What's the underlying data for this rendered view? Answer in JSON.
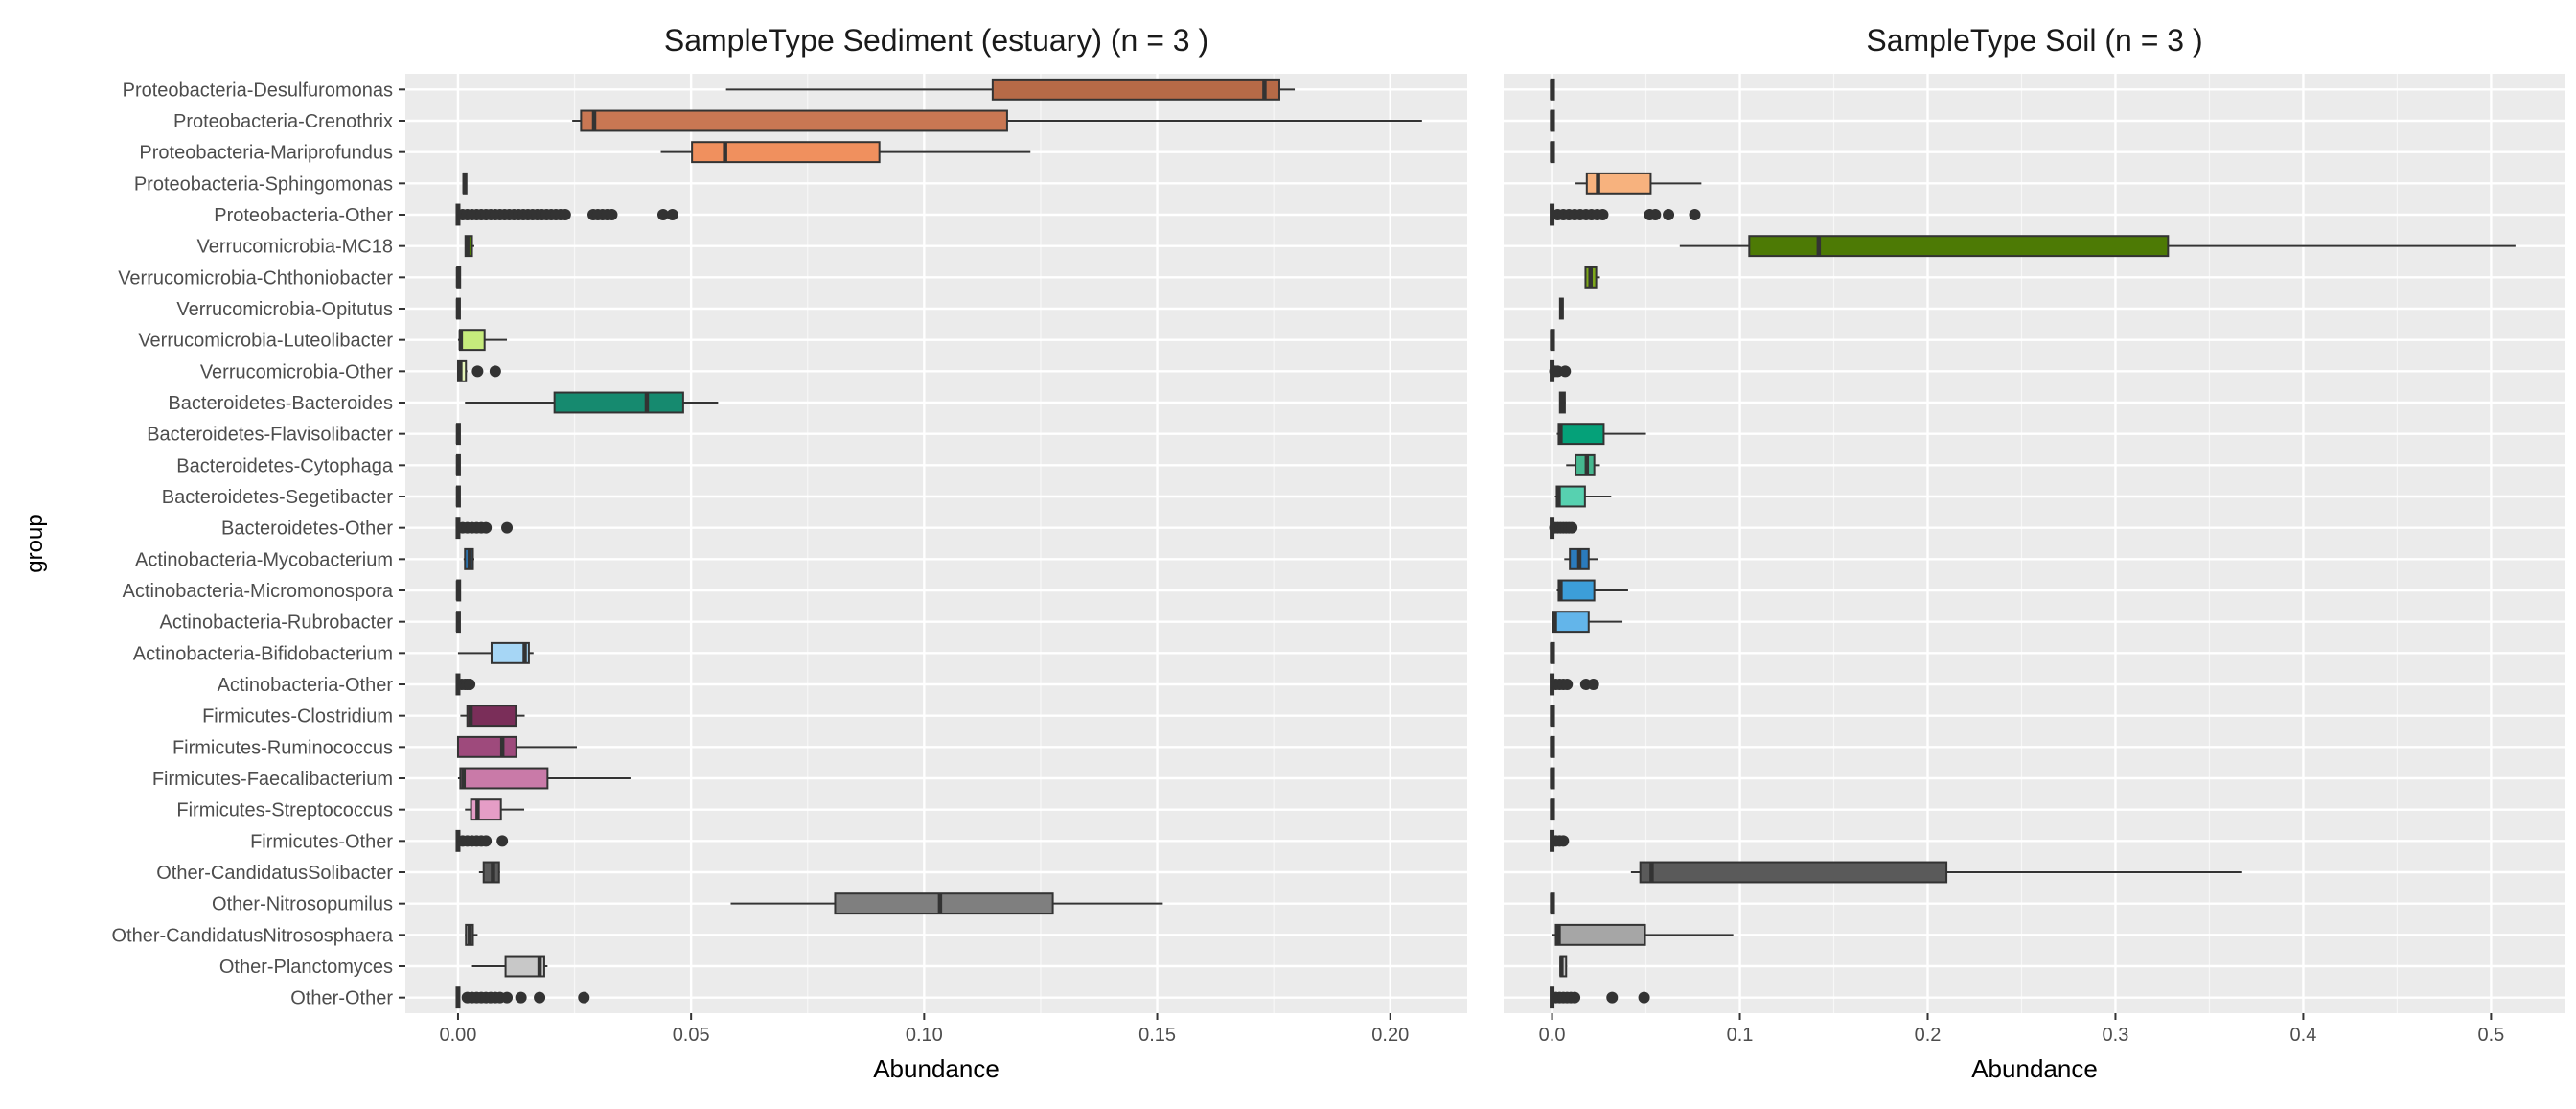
{
  "chart_data": {
    "type": "boxplot",
    "ylabel": "group",
    "groups": [
      "Proteobacteria-Desulfuromonas",
      "Proteobacteria-Crenothrix",
      "Proteobacteria-Mariprofundus",
      "Proteobacteria-Sphingomonas",
      "Proteobacteria-Other",
      "Verrucomicrobia-MC18",
      "Verrucomicrobia-Chthoniobacter",
      "Verrucomicrobia-Opitutus",
      "Verrucomicrobia-Luteolibacter",
      "Verrucomicrobia-Other",
      "Bacteroidetes-Bacteroides",
      "Bacteroidetes-Flavisolibacter",
      "Bacteroidetes-Cytophaga",
      "Bacteroidetes-Segetibacter",
      "Bacteroidetes-Other",
      "Actinobacteria-Mycobacterium",
      "Actinobacteria-Micromonospora",
      "Actinobacteria-Rubrobacter",
      "Actinobacteria-Bifidobacterium",
      "Actinobacteria-Other",
      "Firmicutes-Clostridium",
      "Firmicutes-Ruminococcus",
      "Firmicutes-Faecalibacterium",
      "Firmicutes-Streptococcus",
      "Firmicutes-Other",
      "Other-CandidatusSolibacter",
      "Other-Nitrosopumilus",
      "Other-CandidatusNitrososphaera",
      "Other-Planctomyces",
      "Other-Other"
    ],
    "colors": [
      "#b66a47",
      "#c97753",
      "#f0905e",
      "#f7b27e",
      "#e7c9a0",
      "#4d7a05",
      "#7da81a",
      "#9fc74a",
      "#c6eb7c",
      "#e5f5b8",
      "#168a6f",
      "#05a179",
      "#45b78f",
      "#57d1b0",
      "#a9e5d2",
      "#2b7bbd",
      "#3c9ed9",
      "#63b5ea",
      "#a6d6f5",
      "#d7ecfa",
      "#7a2e59",
      "#9e4a7c",
      "#c97aa8",
      "#e59dc6",
      "#f3c8e0",
      "#5a5a5a",
      "#7f7f7f",
      "#a6a6a6",
      "#c8c8c8",
      "#e6e6e6"
    ],
    "panels": [
      {
        "title": "SampleType Sediment (estuary) (n = 3 )",
        "xlabel": "Abundance",
        "xlim": [
          -0.0113,
          0.2165
        ],
        "xticks": [
          0.0,
          0.05,
          0.1,
          0.15,
          0.2
        ],
        "xtick_labels": [
          "0.00",
          "0.05",
          "0.10",
          "0.15",
          "0.20"
        ],
        "boxes": [
          {
            "group": "Proteobacteria-Desulfuromonas",
            "wmin": 0.0575,
            "q1": 0.1147,
            "med": 0.173,
            "q3": 0.1762,
            "wmax": 0.1795,
            "out": []
          },
          {
            "group": "Proteobacteria-Crenothrix",
            "wmin": 0.0245,
            "q1": 0.0264,
            "med": 0.0292,
            "q3": 0.1178,
            "wmax": 0.2068,
            "out": []
          },
          {
            "group": "Proteobacteria-Mariprofundus",
            "wmin": 0.0435,
            "q1": 0.0502,
            "med": 0.0573,
            "q3": 0.0904,
            "wmax": 0.1228,
            "out": []
          },
          {
            "group": "Proteobacteria-Sphingomonas",
            "wmin": 0.0014,
            "q1": 0.0014,
            "med": 0.0014,
            "q3": 0.0016,
            "wmax": 0.0016,
            "out": []
          },
          {
            "group": "Proteobacteria-Other",
            "wmin": 0.0,
            "q1": 0.0,
            "med": 0.0,
            "q3": 0.0,
            "wmax": 0.0,
            "out": [
              0.001,
              0.002,
              0.003,
              0.004,
              0.005,
              0.006,
              0.007,
              0.008,
              0.009,
              0.01,
              0.011,
              0.012,
              0.013,
              0.014,
              0.015,
              0.016,
              0.017,
              0.018,
              0.019,
              0.02,
              0.021,
              0.022,
              0.023,
              0.029,
              0.03,
              0.031,
              0.032,
              0.033,
              0.044,
              0.046
            ]
          },
          {
            "group": "Verrucomicrobia-MC18",
            "wmin": 0.0015,
            "q1": 0.0016,
            "med": 0.002,
            "q3": 0.003,
            "wmax": 0.0035,
            "out": []
          },
          {
            "group": "Verrucomicrobia-Chthoniobacter",
            "wmin": 0.0,
            "q1": 0.0,
            "med": 0.0,
            "q3": 0.0003,
            "wmax": 0.0003,
            "out": []
          },
          {
            "group": "Verrucomicrobia-Opitutus",
            "wmin": 0.0,
            "q1": 0.0,
            "med": 0.0,
            "q3": 0.0002,
            "wmax": 0.0002,
            "out": []
          },
          {
            "group": "Verrucomicrobia-Luteolibacter",
            "wmin": 0.0,
            "q1": 0.0004,
            "med": 0.0006,
            "q3": 0.0057,
            "wmax": 0.0105,
            "out": []
          },
          {
            "group": "Verrucomicrobia-Other",
            "wmin": 0.0,
            "q1": 0.0,
            "med": 0.0005,
            "q3": 0.0017,
            "wmax": 0.002,
            "out": [
              0.0042,
              0.008
            ]
          },
          {
            "group": "Bacteroidetes-Bacteroides",
            "wmin": 0.0015,
            "q1": 0.0207,
            "med": 0.0405,
            "q3": 0.0483,
            "wmax": 0.0558,
            "out": []
          },
          {
            "group": "Bacteroidetes-Flavisolibacter",
            "wmin": 0.0,
            "q1": 0.0,
            "med": 0.0,
            "q3": 0.0002,
            "wmax": 0.0002,
            "out": []
          },
          {
            "group": "Bacteroidetes-Cytophaga",
            "wmin": 0.0,
            "q1": 0.0,
            "med": 0.0,
            "q3": 0.0002,
            "wmax": 0.0002,
            "out": []
          },
          {
            "group": "Bacteroidetes-Segetibacter",
            "wmin": 0.0,
            "q1": 0.0,
            "med": 0.0,
            "q3": 0.0002,
            "wmax": 0.0002,
            "out": []
          },
          {
            "group": "Bacteroidetes-Other",
            "wmin": 0.0,
            "q1": 0.0,
            "med": 0.0,
            "q3": 0.0,
            "wmax": 0.0,
            "out": [
              0.001,
              0.002,
              0.003,
              0.004,
              0.005,
              0.006,
              0.0105
            ]
          },
          {
            "group": "Actinobacteria-Mycobacterium",
            "wmin": 0.0012,
            "q1": 0.0015,
            "med": 0.0025,
            "q3": 0.0032,
            "wmax": 0.0035,
            "out": []
          },
          {
            "group": "Actinobacteria-Micromonospora",
            "wmin": 0.0,
            "q1": 0.0,
            "med": 0.0,
            "q3": 0.0003,
            "wmax": 0.0003,
            "out": []
          },
          {
            "group": "Actinobacteria-Rubrobacter",
            "wmin": 0.0,
            "q1": 0.0,
            "med": 0.0,
            "q3": 0.0002,
            "wmax": 0.0002,
            "out": []
          },
          {
            "group": "Actinobacteria-Bifidobacterium",
            "wmin": 0.0,
            "q1": 0.0072,
            "med": 0.0143,
            "q3": 0.0152,
            "wmax": 0.0162,
            "out": []
          },
          {
            "group": "Actinobacteria-Other",
            "wmin": 0.0,
            "q1": 0.0,
            "med": 0.0,
            "q3": 0.0,
            "wmax": 0.0,
            "out": [
              0.0008,
              0.0015,
              0.002,
              0.0025
            ]
          },
          {
            "group": "Firmicutes-Clostridium",
            "wmin": 0.0005,
            "q1": 0.002,
            "med": 0.0027,
            "q3": 0.0124,
            "wmax": 0.0143,
            "out": []
          },
          {
            "group": "Firmicutes-Ruminococcus",
            "wmin": 0.0,
            "q1": 0.0,
            "med": 0.0095,
            "q3": 0.0125,
            "wmax": 0.0255,
            "out": []
          },
          {
            "group": "Firmicutes-Faecalibacterium",
            "wmin": 0.0,
            "q1": 0.0005,
            "med": 0.0012,
            "q3": 0.0192,
            "wmax": 0.037,
            "out": []
          },
          {
            "group": "Firmicutes-Streptococcus",
            "wmin": 0.0015,
            "q1": 0.0028,
            "med": 0.0042,
            "q3": 0.0092,
            "wmax": 0.0142,
            "out": []
          },
          {
            "group": "Firmicutes-Other",
            "wmin": 0.0,
            "q1": 0.0,
            "med": 0.0,
            "q3": 0.0,
            "wmax": 0.0,
            "out": [
              0.001,
              0.002,
              0.003,
              0.004,
              0.005,
              0.006,
              0.0095
            ]
          },
          {
            "group": "Other-CandidatusSolibacter",
            "wmin": 0.0045,
            "q1": 0.0055,
            "med": 0.0075,
            "q3": 0.0088,
            "wmax": 0.009,
            "out": []
          },
          {
            "group": "Other-Nitrosopumilus",
            "wmin": 0.0585,
            "q1": 0.0809,
            "med": 0.1034,
            "q3": 0.1276,
            "wmax": 0.1512,
            "out": []
          },
          {
            "group": "Other-CandidatusNitrososphaera",
            "wmin": 0.0015,
            "q1": 0.0017,
            "med": 0.0025,
            "q3": 0.0032,
            "wmax": 0.0042,
            "out": []
          },
          {
            "group": "Other-Planctomyces",
            "wmin": 0.003,
            "q1": 0.0102,
            "med": 0.0175,
            "q3": 0.0185,
            "wmax": 0.0192,
            "out": []
          },
          {
            "group": "Other-Other",
            "wmin": 0.0,
            "q1": 0.0,
            "med": 0.0,
            "q3": 0.0,
            "wmax": 0.0,
            "out": [
              0.002,
              0.003,
              0.004,
              0.005,
              0.006,
              0.007,
              0.008,
              0.009,
              0.0105,
              0.0135,
              0.0175,
              0.027
            ]
          }
        ]
      },
      {
        "title": "SampleType Soil (n = 3 )",
        "xlabel": "Abundance",
        "xlim": [
          -0.0258,
          0.5396
        ],
        "xticks": [
          0.0,
          0.1,
          0.2,
          0.3,
          0.4,
          0.5
        ],
        "xtick_labels": [
          "0.0",
          "0.1",
          "0.2",
          "0.3",
          "0.4",
          "0.5"
        ],
        "boxes": [
          {
            "group": "Proteobacteria-Desulfuromonas",
            "wmin": 0.0,
            "q1": 0.0,
            "med": 0.0,
            "q3": 0.0005,
            "wmax": 0.0005,
            "out": []
          },
          {
            "group": "Proteobacteria-Crenothrix",
            "wmin": 0.0,
            "q1": 0.0,
            "med": 0.0,
            "q3": 0.0005,
            "wmax": 0.0005,
            "out": []
          },
          {
            "group": "Proteobacteria-Mariprofundus",
            "wmin": 0.0,
            "q1": 0.0,
            "med": 0.0,
            "q3": 0.0005,
            "wmax": 0.0005,
            "out": []
          },
          {
            "group": "Proteobacteria-Sphingomonas",
            "wmin": 0.0125,
            "q1": 0.0185,
            "med": 0.0245,
            "q3": 0.0525,
            "wmax": 0.0795,
            "out": []
          },
          {
            "group": "Proteobacteria-Other",
            "wmin": 0.0,
            "q1": 0.0,
            "med": 0.0,
            "q3": 0.0,
            "wmax": 0.0,
            "out": [
              0.003,
              0.006,
              0.009,
              0.012,
              0.015,
              0.018,
              0.021,
              0.024,
              0.027,
              0.052,
              0.055,
              0.062,
              0.076
            ]
          },
          {
            "group": "Verrucomicrobia-MC18",
            "wmin": 0.068,
            "q1": 0.105,
            "med": 0.142,
            "q3": 0.328,
            "wmax": 0.513,
            "out": []
          },
          {
            "group": "Verrucomicrobia-Chthoniobacter",
            "wmin": 0.0175,
            "q1": 0.0178,
            "med": 0.0205,
            "q3": 0.0235,
            "wmax": 0.0255,
            "out": []
          },
          {
            "group": "Verrucomicrobia-Opitutus",
            "wmin": 0.004,
            "q1": 0.0045,
            "med": 0.005,
            "q3": 0.0055,
            "wmax": 0.006,
            "out": []
          },
          {
            "group": "Verrucomicrobia-Luteolibacter",
            "wmin": 0.0,
            "q1": 0.0,
            "med": 0.0,
            "q3": 0.0005,
            "wmax": 0.0005,
            "out": []
          },
          {
            "group": "Verrucomicrobia-Other",
            "wmin": 0.0,
            "q1": 0.0,
            "med": 0.0,
            "q3": 0.0,
            "wmax": 0.0,
            "out": [
              0.0015,
              0.003,
              0.007
            ]
          },
          {
            "group": "Bacteroidetes-Bacteroides",
            "wmin": 0.0038,
            "q1": 0.0042,
            "med": 0.0055,
            "q3": 0.0068,
            "wmax": 0.0072,
            "out": []
          },
          {
            "group": "Bacteroidetes-Flavisolibacter",
            "wmin": 0.0025,
            "q1": 0.0035,
            "med": 0.0045,
            "q3": 0.0275,
            "wmax": 0.05,
            "out": []
          },
          {
            "group": "Bacteroidetes-Cytophaga",
            "wmin": 0.0075,
            "q1": 0.0125,
            "med": 0.0185,
            "q3": 0.0225,
            "wmax": 0.0255,
            "out": []
          },
          {
            "group": "Bacteroidetes-Segetibacter",
            "wmin": 0.0015,
            "q1": 0.0025,
            "med": 0.0035,
            "q3": 0.0175,
            "wmax": 0.0315,
            "out": []
          },
          {
            "group": "Bacteroidetes-Other",
            "wmin": 0.0,
            "q1": 0.0,
            "med": 0.0,
            "q3": 0.0,
            "wmax": 0.0,
            "out": [
              0.0015,
              0.003,
              0.0045,
              0.006,
              0.0075,
              0.009,
              0.0105
            ]
          },
          {
            "group": "Actinobacteria-Mycobacterium",
            "wmin": 0.0065,
            "q1": 0.0095,
            "med": 0.0145,
            "q3": 0.0195,
            "wmax": 0.0245,
            "out": []
          },
          {
            "group": "Actinobacteria-Micromonospora",
            "wmin": 0.0025,
            "q1": 0.0035,
            "med": 0.0045,
            "q3": 0.0225,
            "wmax": 0.0405,
            "out": []
          },
          {
            "group": "Actinobacteria-Rubrobacter",
            "wmin": 0.0,
            "q1": 0.0005,
            "med": 0.0015,
            "q3": 0.0195,
            "wmax": 0.0375,
            "out": []
          },
          {
            "group": "Actinobacteria-Bifidobacterium",
            "wmin": 0.0,
            "q1": 0.0,
            "med": 0.0,
            "q3": 0.0005,
            "wmax": 0.0005,
            "out": []
          },
          {
            "group": "Actinobacteria-Other",
            "wmin": 0.0,
            "q1": 0.0,
            "med": 0.0,
            "q3": 0.0,
            "wmax": 0.0,
            "out": [
              0.002,
              0.004,
              0.006,
              0.008,
              0.018,
              0.022
            ]
          },
          {
            "group": "Firmicutes-Clostridium",
            "wmin": 0.0,
            "q1": 0.0,
            "med": 0.0,
            "q3": 0.0005,
            "wmax": 0.0005,
            "out": []
          },
          {
            "group": "Firmicutes-Ruminococcus",
            "wmin": 0.0,
            "q1": 0.0,
            "med": 0.0,
            "q3": 0.0005,
            "wmax": 0.0005,
            "out": []
          },
          {
            "group": "Firmicutes-Faecalibacterium",
            "wmin": 0.0,
            "q1": 0.0,
            "med": 0.0,
            "q3": 0.0005,
            "wmax": 0.0005,
            "out": []
          },
          {
            "group": "Firmicutes-Streptococcus",
            "wmin": 0.0,
            "q1": 0.0,
            "med": 0.0,
            "q3": 0.0005,
            "wmax": 0.0005,
            "out": []
          },
          {
            "group": "Firmicutes-Other",
            "wmin": 0.0,
            "q1": 0.0,
            "med": 0.0,
            "q3": 0.0,
            "wmax": 0.0,
            "out": [
              0.002,
              0.004,
              0.006
            ]
          },
          {
            "group": "Other-CandidatusSolibacter",
            "wmin": 0.042,
            "q1": 0.047,
            "med": 0.053,
            "q3": 0.21,
            "wmax": 0.367,
            "out": []
          },
          {
            "group": "Other-Nitrosopumilus",
            "wmin": 0.0,
            "q1": 0.0,
            "med": 0.0,
            "q3": 0.0005,
            "wmax": 0.0005,
            "out": []
          },
          {
            "group": "Other-CandidatusNitrososphaera",
            "wmin": 0.0,
            "q1": 0.002,
            "med": 0.0035,
            "q3": 0.0495,
            "wmax": 0.0965,
            "out": []
          },
          {
            "group": "Other-Planctomyces",
            "wmin": 0.004,
            "q1": 0.0045,
            "med": 0.005,
            "q3": 0.0075,
            "wmax": 0.008,
            "out": []
          },
          {
            "group": "Other-Other",
            "wmin": 0.0,
            "q1": 0.0,
            "med": 0.0,
            "q3": 0.0,
            "wmax": 0.0,
            "out": [
              0.002,
              0.004,
              0.006,
              0.008,
              0.01,
              0.012,
              0.032,
              0.049
            ]
          }
        ]
      }
    ]
  }
}
